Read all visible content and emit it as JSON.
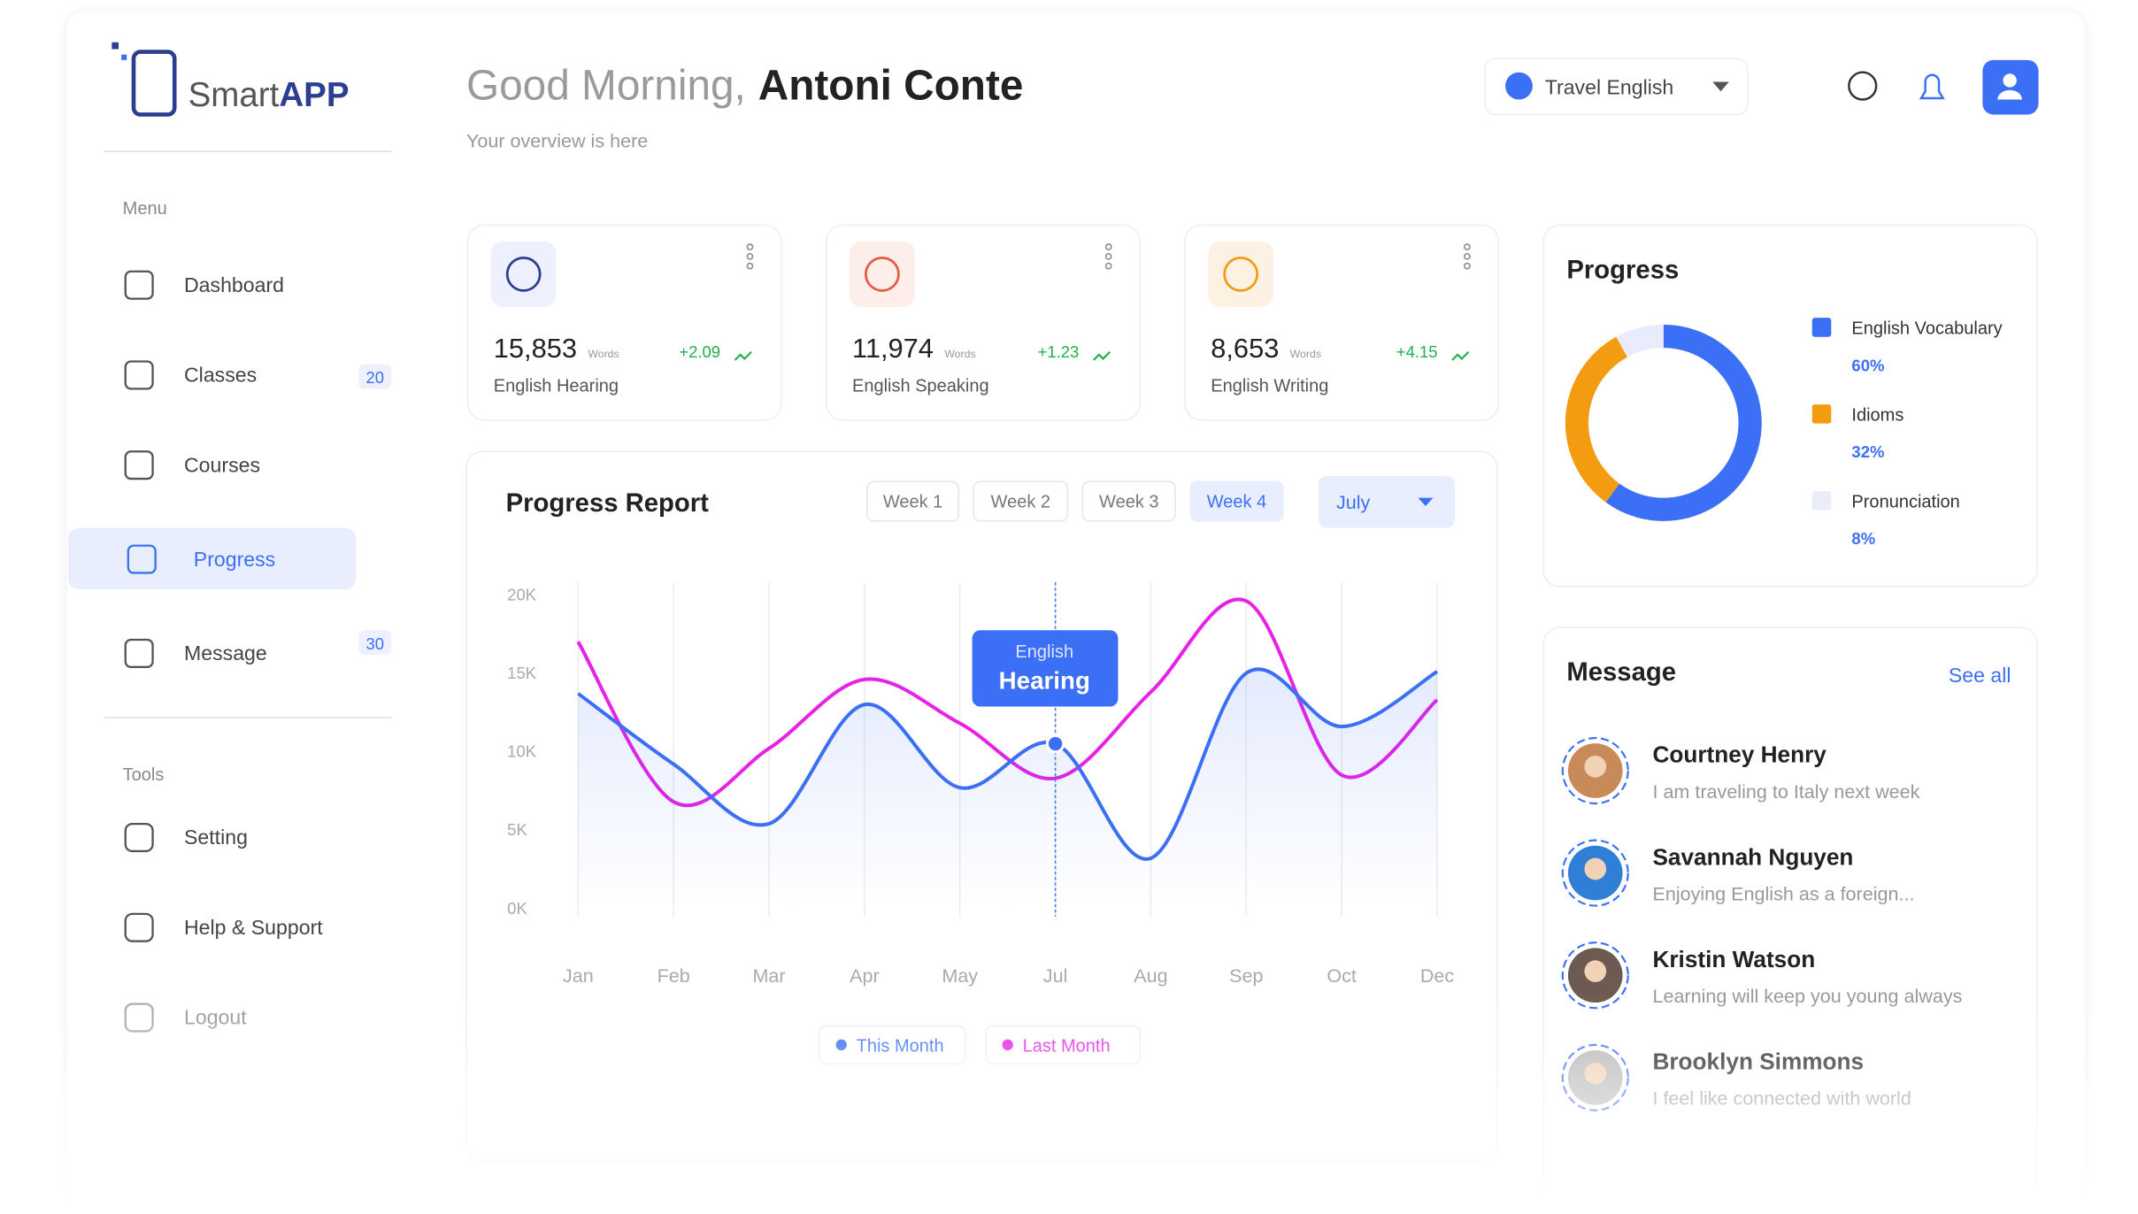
{
  "logo": [
    "Smart",
    "APP"
  ],
  "header": {
    "greeting": "Good Morning,",
    "user": "Antoni Conte",
    "subtitle": "Your overview  is here",
    "course_select": "Travel English"
  },
  "sidebar": {
    "menu_label": "Menu",
    "menu": [
      {
        "label": "Dashboard"
      },
      {
        "label": "Classes",
        "badge": 20
      },
      {
        "label": "Courses"
      },
      {
        "label": "Progress",
        "active": true
      },
      {
        "label": "Message",
        "badge": 30
      }
    ],
    "tools_label": "Tools",
    "tools": [
      "Setting",
      "Help & Support",
      "Logout"
    ]
  },
  "stats": [
    {
      "value": "15,853",
      "unit": "Words",
      "change": "+2.09",
      "label": "English Hearing"
    },
    {
      "value": "11,974",
      "unit": "Words",
      "change": "+1.23",
      "label": "English Speaking"
    },
    {
      "value": "8,653",
      "unit": "Words",
      "change": "+4.15",
      "label": "English Writing"
    }
  ],
  "chart_data": [
    {
      "type": "line",
      "title": "Progress Report",
      "weeks": [
        "Week 1",
        "Week 2",
        "Week 3",
        "Week 4"
      ],
      "active_week": 3,
      "month_select": "July",
      "categories": [
        "Jan",
        "Feb",
        "Mar",
        "Apr",
        "May",
        "Jul",
        "Aug",
        "Sep",
        "Oct",
        "Dec"
      ],
      "series": [
        {
          "name": "This Month",
          "color": "#3b6ff5",
          "values": [
            13700,
            9200,
            5400,
            13000,
            7700,
            10500,
            3200,
            15000,
            11600,
            15100
          ]
        },
        {
          "name": "Last Month",
          "color": "#e622e6",
          "values": [
            17000,
            6800,
            10200,
            14600,
            11800,
            8300,
            13800,
            19600,
            8500,
            13300
          ]
        }
      ],
      "ylim": [
        0,
        20000
      ],
      "yticks": [
        {
          "value": 0,
          "label": "0K"
        },
        {
          "value": 5000,
          "label": "5K"
        },
        {
          "value": 10000,
          "label": "10K"
        },
        {
          "value": 15000,
          "label": "15K"
        },
        {
          "value": 20000,
          "label": "20K"
        }
      ],
      "grid": "x",
      "tooltip": {
        "category_index": 5,
        "series_index": 0,
        "lines": [
          "English",
          "Hearing"
        ]
      }
    },
    {
      "type": "pie",
      "title": "Progress",
      "categories": [
        "English Vocabulary",
        "Idioms",
        "Pronunciation"
      ],
      "values": [
        60,
        32,
        8
      ],
      "value_labels": [
        "60%",
        "32%",
        "8%"
      ],
      "colors": [
        "#3b6ff5",
        "#f39c12",
        "#e9edfb"
      ]
    }
  ],
  "messages": {
    "title": "Message",
    "see_all": "See all",
    "items": [
      {
        "name": "Courtney Henry",
        "text": "I am traveling to Italy next week"
      },
      {
        "name": "Savannah Nguyen",
        "text": "Enjoying English as a foreign..."
      },
      {
        "name": "Kristin Watson",
        "text": "Learning will keep you young always"
      },
      {
        "name": "Brooklyn Simmons",
        "text": "I feel like connected with world"
      }
    ]
  }
}
